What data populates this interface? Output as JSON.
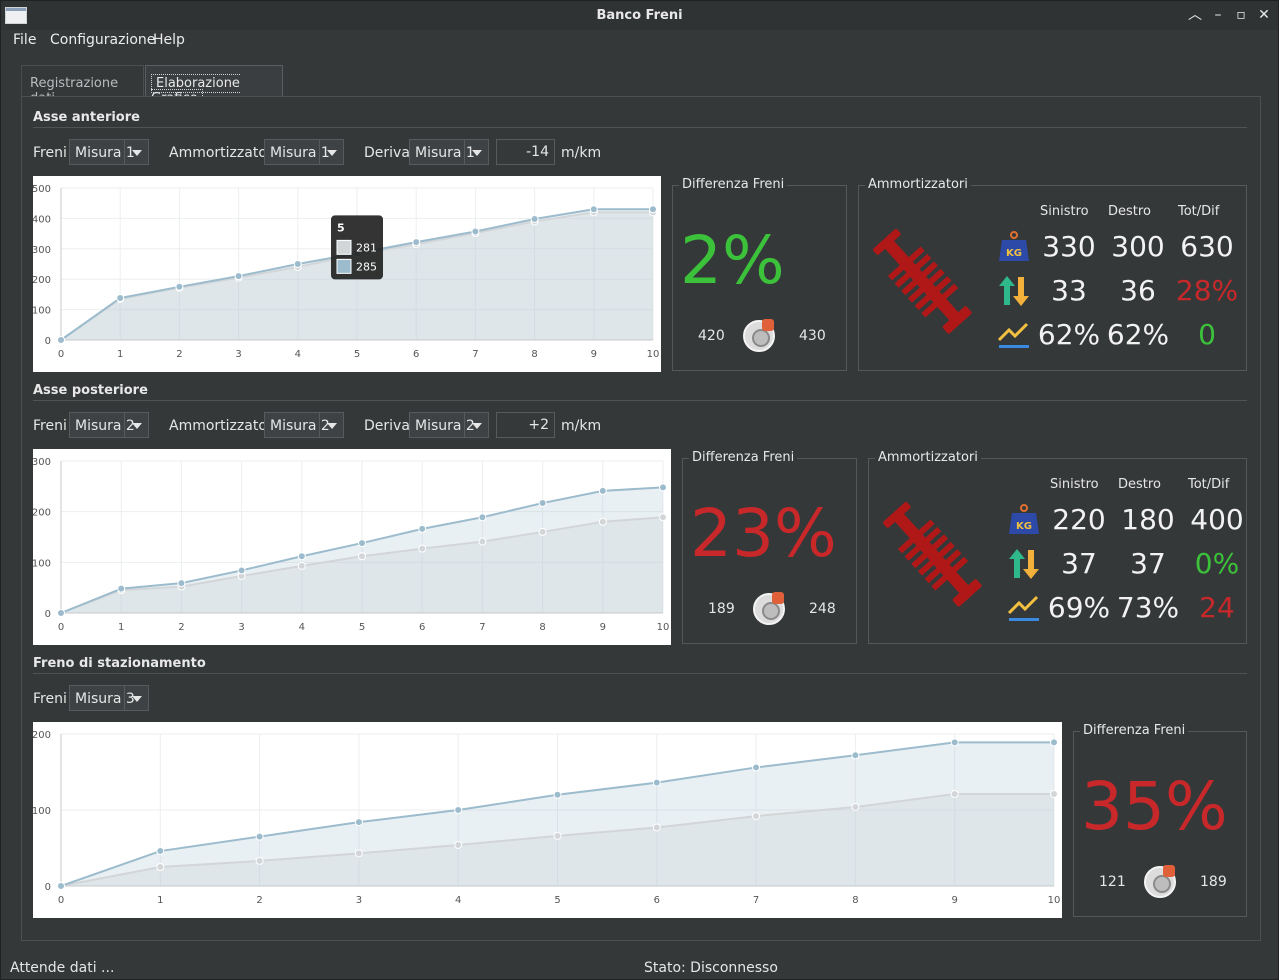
{
  "window": {
    "title": "Banco Freni"
  },
  "menu": [
    "File",
    "Configurazione",
    "Help"
  ],
  "tabs": [
    "Registrazione dati",
    "Elaborazione Grafico"
  ],
  "colors": {
    "green": "#3cc23a",
    "red": "#c8282a",
    "series_a": "#d3d6d8",
    "series_b": "#9cbccd"
  },
  "front": {
    "title": "Asse anteriore",
    "freni_label": "Freni",
    "freni_value": "Misura 1",
    "amm_label": "Ammortizzatori",
    "amm_value": "Misura 1",
    "deriva_label": "Deriva",
    "deriva_value": "Misura 1",
    "deriva_num": "-14",
    "deriva_unit": "m/km",
    "diff_title": "Differenza Freni",
    "diff_pct": "2%",
    "left": "420",
    "right": "430",
    "amm_title": "Ammortizzatori",
    "hdr": [
      "Sinistro",
      "Destro",
      "Tot/Dif"
    ],
    "rows": [
      [
        "330",
        "300",
        "630"
      ],
      [
        "33",
        "36",
        "28%"
      ],
      [
        "62%",
        "62%",
        "0"
      ]
    ],
    "row_colors": [
      "#f2f2f2",
      "#c8282a",
      "#3cc23a"
    ],
    "tooltip": {
      "title": "5",
      "a": "281",
      "b": "285"
    }
  },
  "rear": {
    "title": "Asse posteriore",
    "freni_label": "Freni",
    "freni_value": "Misura 2",
    "amm_label": "Ammortizzatori",
    "amm_value": "Misura 2",
    "deriva_label": "Deriva",
    "deriva_value": "Misura 2",
    "deriva_num": "+2",
    "deriva_unit": "m/km",
    "diff_title": "Differenza Freni",
    "diff_pct": "23%",
    "left": "189",
    "right": "248",
    "amm_title": "Ammortizzatori",
    "hdr": [
      "Sinistro",
      "Destro",
      "Tot/Dif"
    ],
    "rows": [
      [
        "220",
        "180",
        "400"
      ],
      [
        "37",
        "37",
        "0%"
      ],
      [
        "69%",
        "73%",
        "24"
      ]
    ],
    "row_colors": [
      "#f2f2f2",
      "#3cc23a",
      "#c8282a"
    ]
  },
  "park": {
    "title": "Freno di stazionamento",
    "freni_label": "Freni",
    "freni_value": "Misura 3",
    "diff_title": "Differenza Freni",
    "diff_pct": "35%",
    "left": "121",
    "right": "189"
  },
  "status": {
    "left": "Attende dati ...",
    "center": "Stato: Disconnesso"
  },
  "chart_data": [
    {
      "type": "area",
      "x": [
        0,
        1,
        2,
        3,
        4,
        5,
        6,
        7,
        8,
        9,
        10
      ],
      "ylim": [
        0,
        500
      ],
      "yticks": [
        0,
        100,
        200,
        300,
        400,
        500
      ],
      "series": [
        {
          "values": [
            0,
            135,
            172,
            205,
            240,
            281,
            315,
            352,
            390,
            420,
            420
          ]
        },
        {
          "values": [
            0,
            138,
            175,
            210,
            250,
            285,
            322,
            357,
            398,
            430,
            430
          ]
        }
      ]
    },
    {
      "type": "area",
      "x": [
        0,
        1,
        2,
        3,
        4,
        5,
        6,
        7,
        8,
        9,
        10
      ],
      "ylim": [
        0,
        300
      ],
      "yticks": [
        0,
        100,
        200,
        300
      ],
      "series": [
        {
          "values": [
            0,
            45,
            52,
            73,
            93,
            112,
            127,
            141,
            160,
            180,
            189
          ]
        },
        {
          "values": [
            0,
            48,
            59,
            84,
            112,
            138,
            166,
            189,
            217,
            241,
            248
          ]
        }
      ]
    },
    {
      "type": "area",
      "x": [
        0,
        1,
        2,
        3,
        4,
        5,
        6,
        7,
        8,
        9,
        10
      ],
      "ylim": [
        0,
        200
      ],
      "yticks": [
        0,
        100,
        200
      ],
      "series": [
        {
          "values": [
            0,
            25,
            33,
            43,
            54,
            66,
            77,
            92,
            104,
            121,
            121
          ]
        },
        {
          "values": [
            0,
            46,
            65,
            84,
            100,
            120,
            136,
            156,
            172,
            189,
            189
          ]
        }
      ]
    }
  ]
}
